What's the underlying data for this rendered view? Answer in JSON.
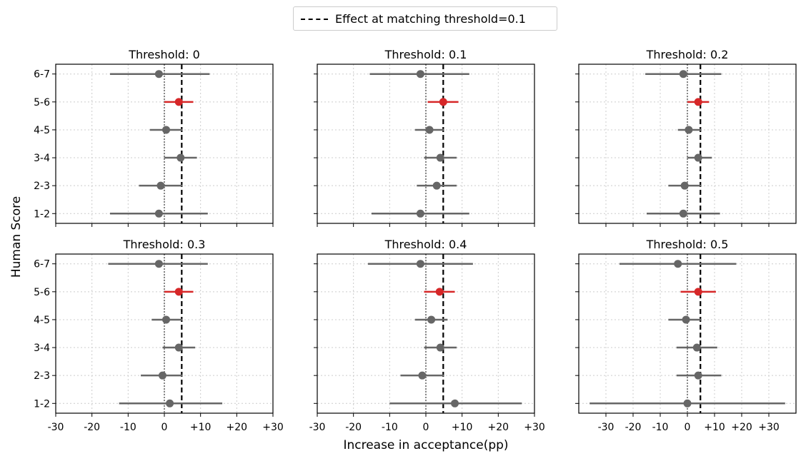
{
  "legend": {
    "label": "Effect at matching threshold=0.1"
  },
  "ylabel": "Human Score",
  "xlabel": "Increase in acceptance(pp)",
  "colors": {
    "highlight": "#d62728",
    "normal": "#666666",
    "reference": "#000000",
    "zero_line": "#888888",
    "grid": "#cccccc"
  },
  "chart_data": [
    {
      "type": "scatter",
      "title": "Threshold: 0",
      "categories": [
        "1-2",
        "2-3",
        "3-4",
        "4-5",
        "5-6",
        "6-7"
      ],
      "xticks": [
        "-30",
        "-20",
        "-10",
        "0",
        "+10",
        "+20",
        "+30"
      ],
      "xtick_values": [
        -30,
        -20,
        -10,
        0,
        10,
        20,
        30
      ],
      "xlim": [
        -30,
        30
      ],
      "reference": 4.8,
      "highlight": "5-6",
      "points": [
        {
          "category": "1-2",
          "value": -1.5,
          "low": -15,
          "high": 12
        },
        {
          "category": "2-3",
          "value": -1,
          "low": -7,
          "high": 5
        },
        {
          "category": "3-4",
          "value": 4.5,
          "low": 0,
          "high": 9
        },
        {
          "category": "4-5",
          "value": 0.5,
          "low": -4,
          "high": 5
        },
        {
          "category": "5-6",
          "value": 4,
          "low": 0,
          "high": 8
        },
        {
          "category": "6-7",
          "value": -1.5,
          "low": -15,
          "high": 12.5
        }
      ]
    },
    {
      "type": "scatter",
      "title": "Threshold: 0.1",
      "categories": [
        "1-2",
        "2-3",
        "3-4",
        "4-5",
        "5-6",
        "6-7"
      ],
      "xticks": [
        "-30",
        "-20",
        "-10",
        "0",
        "+10",
        "+20",
        "+30"
      ],
      "xtick_values": [
        -30,
        -20,
        -10,
        0,
        10,
        20,
        30
      ],
      "xlim": [
        -30,
        30
      ],
      "reference": 4.8,
      "highlight": "5-6",
      "points": [
        {
          "category": "1-2",
          "value": -1.5,
          "low": -15,
          "high": 12
        },
        {
          "category": "2-3",
          "value": 3,
          "low": -2.5,
          "high": 8.5
        },
        {
          "category": "3-4",
          "value": 4,
          "low": -0.5,
          "high": 8.5
        },
        {
          "category": "4-5",
          "value": 1,
          "low": -3,
          "high": 5
        },
        {
          "category": "5-6",
          "value": 4.8,
          "low": 0.5,
          "high": 9
        },
        {
          "category": "6-7",
          "value": -1.5,
          "low": -15.5,
          "high": 12
        }
      ]
    },
    {
      "type": "scatter",
      "title": "Threshold: 0.2",
      "categories": [
        "1-2",
        "2-3",
        "3-4",
        "4-5",
        "5-6",
        "6-7"
      ],
      "xticks": [
        "-30",
        "-20",
        "-10",
        "0",
        "+10",
        "+20",
        "+30"
      ],
      "xtick_values": [
        -30,
        -20,
        -10,
        0,
        10,
        20,
        30
      ],
      "xlim": [
        -40,
        40
      ],
      "reference": 4.8,
      "highlight": "5-6",
      "points": [
        {
          "category": "1-2",
          "value": -1.5,
          "low": -15,
          "high": 12
        },
        {
          "category": "2-3",
          "value": -1,
          "low": -7,
          "high": 5
        },
        {
          "category": "3-4",
          "value": 4,
          "low": 0,
          "high": 9
        },
        {
          "category": "4-5",
          "value": 0.5,
          "low": -3.5,
          "high": 5
        },
        {
          "category": "5-6",
          "value": 4,
          "low": 0,
          "high": 8
        },
        {
          "category": "6-7",
          "value": -1.5,
          "low": -15.5,
          "high": 12.5
        }
      ]
    },
    {
      "type": "scatter",
      "title": "Threshold: 0.3",
      "categories": [
        "1-2",
        "2-3",
        "3-4",
        "4-5",
        "5-6",
        "6-7"
      ],
      "xticks": [
        "-30",
        "-20",
        "-10",
        "0",
        "+10",
        "+20",
        "+30"
      ],
      "xtick_values": [
        -30,
        -20,
        -10,
        0,
        10,
        20,
        30
      ],
      "xlim": [
        -30,
        30
      ],
      "reference": 4.8,
      "highlight": "5-6",
      "points": [
        {
          "category": "1-2",
          "value": 1.5,
          "low": -12.5,
          "high": 16
        },
        {
          "category": "2-3",
          "value": -0.5,
          "low": -6.5,
          "high": 5
        },
        {
          "category": "3-4",
          "value": 4,
          "low": -0.5,
          "high": 8.5
        },
        {
          "category": "4-5",
          "value": 0.5,
          "low": -3.5,
          "high": 5
        },
        {
          "category": "5-6",
          "value": 4,
          "low": 0,
          "high": 8
        },
        {
          "category": "6-7",
          "value": -1.5,
          "low": -15.5,
          "high": 12
        }
      ]
    },
    {
      "type": "scatter",
      "title": "Threshold: 0.4",
      "categories": [
        "1-2",
        "2-3",
        "3-4",
        "4-5",
        "5-6",
        "6-7"
      ],
      "xticks": [
        "-30",
        "-20",
        "-10",
        "0",
        "+10",
        "+20",
        "+30"
      ],
      "xtick_values": [
        -30,
        -20,
        -10,
        0,
        10,
        20,
        30
      ],
      "xlim": [
        -30,
        30
      ],
      "reference": 4.8,
      "highlight": "5-6",
      "points": [
        {
          "category": "1-2",
          "value": 8,
          "low": -10,
          "high": 26.5
        },
        {
          "category": "2-3",
          "value": -1,
          "low": -7,
          "high": 5
        },
        {
          "category": "3-4",
          "value": 4,
          "low": -0.5,
          "high": 8.5
        },
        {
          "category": "4-5",
          "value": 1.5,
          "low": -3,
          "high": 6
        },
        {
          "category": "5-6",
          "value": 3.8,
          "low": -0.5,
          "high": 8
        },
        {
          "category": "6-7",
          "value": -1.5,
          "low": -16,
          "high": 13
        }
      ]
    },
    {
      "type": "scatter",
      "title": "Threshold: 0.5",
      "categories": [
        "1-2",
        "2-3",
        "3-4",
        "4-5",
        "5-6",
        "6-7"
      ],
      "xticks": [
        "-30",
        "-20",
        "-10",
        "0",
        "+10",
        "+20",
        "+30"
      ],
      "xtick_values": [
        -30,
        -20,
        -10,
        0,
        10,
        20,
        30
      ],
      "xlim": [
        -40,
        40
      ],
      "reference": 4.8,
      "highlight": "5-6",
      "points": [
        {
          "category": "1-2",
          "value": 0,
          "low": -36,
          "high": 36
        },
        {
          "category": "2-3",
          "value": 4,
          "low": -4,
          "high": 12.5
        },
        {
          "category": "3-4",
          "value": 3.5,
          "low": -4,
          "high": 11
        },
        {
          "category": "4-5",
          "value": -0.5,
          "low": -7,
          "high": 5
        },
        {
          "category": "5-6",
          "value": 4,
          "low": -2.5,
          "high": 10.5
        },
        {
          "category": "6-7",
          "value": -3.5,
          "low": -25,
          "high": 18
        }
      ]
    }
  ]
}
